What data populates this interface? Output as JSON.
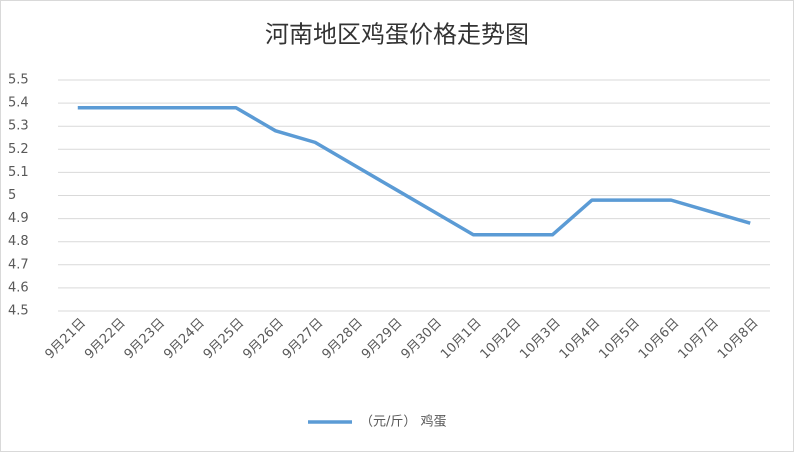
{
  "chart_data": {
    "type": "line",
    "title": "河南地区鸡蛋价格走势图",
    "categories": [
      "9月21日",
      "9月22日",
      "9月23日",
      "9月24日",
      "9月25日",
      "9月26日",
      "9月27日",
      "9月28日",
      "9月29日",
      "9月30日",
      "10月1日",
      "10月2日",
      "10月3日",
      "10月4日",
      "10月5日",
      "10月6日",
      "10月7日",
      "10月8日"
    ],
    "series": [
      {
        "name": "（元/斤） 鸡蛋",
        "color": "#5b9bd5",
        "values": [
          5.38,
          5.38,
          5.38,
          5.38,
          5.38,
          5.28,
          5.23,
          5.13,
          5.03,
          4.93,
          4.83,
          4.83,
          4.83,
          4.98,
          4.98,
          4.98,
          4.93,
          4.88
        ]
      }
    ],
    "ylim": [
      4.5,
      5.5
    ],
    "yticks": [
      4.5,
      4.6,
      4.7,
      4.8,
      4.9,
      5,
      5.1,
      5.2,
      5.3,
      5.4,
      5.5
    ],
    "grid": true,
    "legend": "bottom"
  }
}
